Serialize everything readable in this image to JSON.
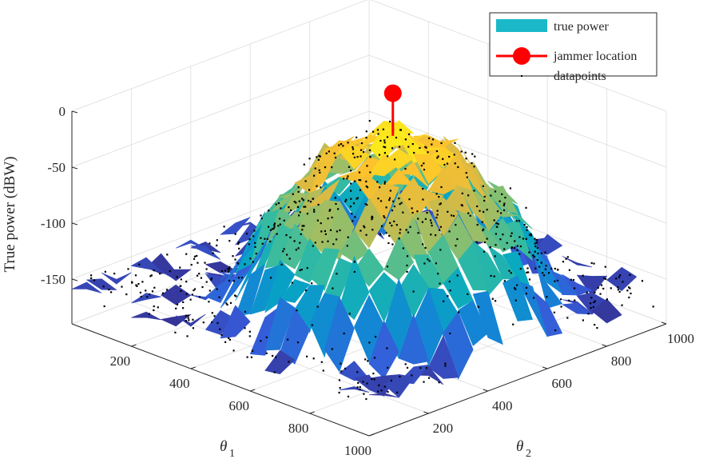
{
  "chart_data": {
    "type": "surface3d",
    "title": "",
    "xlabel": "θ",
    "xlabel_sub": "1",
    "ylabel": "θ",
    "ylabel_sub": "2",
    "zlabel": "True power (dBW)",
    "xlim": [
      0,
      1000
    ],
    "ylim": [
      0,
      1000
    ],
    "zlim": [
      -190,
      0
    ],
    "x_ticks": [
      200,
      400,
      600,
      800,
      1000
    ],
    "y_ticks": [
      200,
      400,
      600,
      800,
      1000
    ],
    "z_ticks": [
      0,
      -50,
      -100,
      -150
    ],
    "x_tick_labels": [
      "200",
      "400",
      "600",
      "800",
      "1000"
    ],
    "y_tick_labels": [
      "200",
      "400",
      "600",
      "800",
      "1000"
    ],
    "z_tick_labels": [
      "0",
      "-50",
      "-100",
      "-150"
    ],
    "grid": true,
    "legend": {
      "position": "top-right",
      "entries": [
        {
          "label": "true power",
          "kind": "patch",
          "color": "#1ab8c8"
        },
        {
          "label": "jammer location",
          "kind": "stem-marker",
          "color": "#ff0000"
        },
        {
          "label": "datapoints",
          "kind": "dot",
          "color": "#000000"
        }
      ]
    },
    "jammer": {
      "x": 610,
      "y": 470,
      "z": 30
    },
    "surface": {
      "colormap": "parula",
      "grid_step": 50,
      "description_peak_power_dbw": -10,
      "floor_power_dbw": -165
    },
    "datapoints_count": 700
  }
}
